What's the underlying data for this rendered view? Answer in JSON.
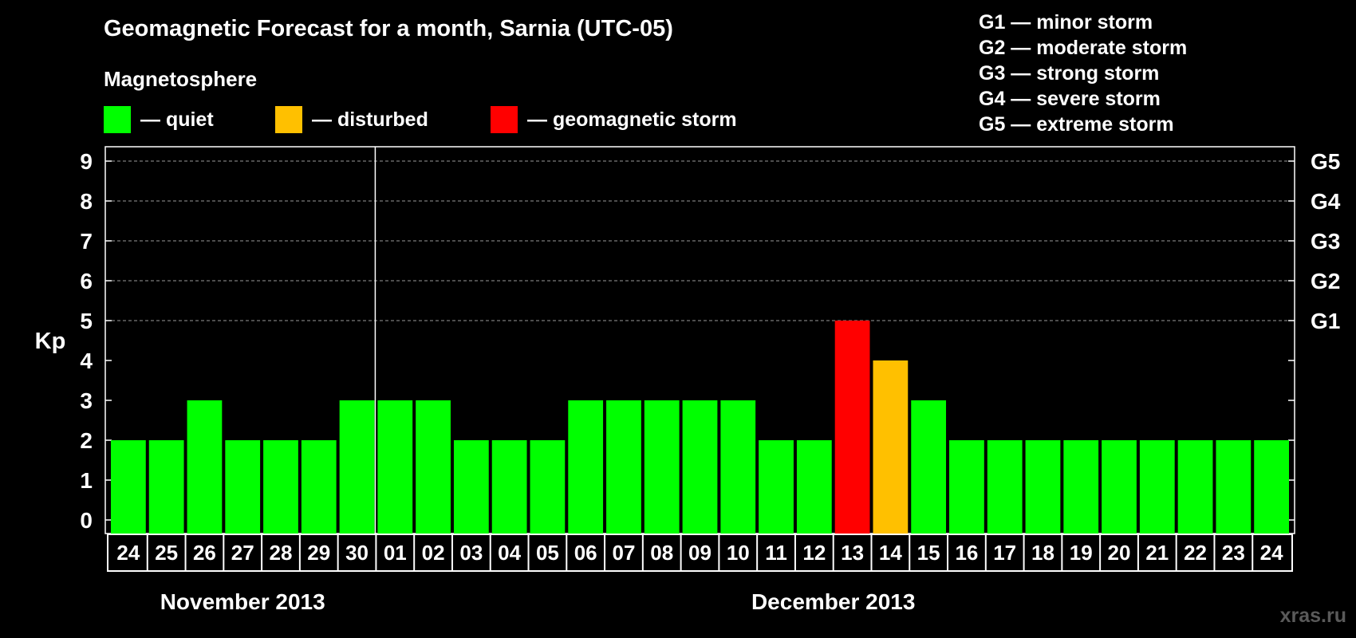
{
  "header": {
    "title": "Geomagnetic Forecast for a month, Sarnia (UTC-05)",
    "subtitle": "Magnetosphere"
  },
  "legend": [
    {
      "label": "— quiet",
      "color": "#00ff00"
    },
    {
      "label": "— disturbed",
      "color": "#ffc000"
    },
    {
      "label": "— geomagnetic storm",
      "color": "#ff0000"
    }
  ],
  "storm_scale": [
    "G1 — minor storm",
    "G2 — moderate storm",
    "G3 — strong storm",
    "G4 — severe storm",
    "G5 — extreme storm"
  ],
  "watermark": "xras.ru",
  "chart_data": {
    "type": "bar",
    "ylabel": "Kp",
    "ylim": [
      0,
      9
    ],
    "yticks": [
      0,
      1,
      2,
      3,
      4,
      5,
      6,
      7,
      8,
      9
    ],
    "right_axis_labels": [
      {
        "kp": 5,
        "label": "G1"
      },
      {
        "kp": 6,
        "label": "G2"
      },
      {
        "kp": 7,
        "label": "G3"
      },
      {
        "kp": 8,
        "label": "G4"
      },
      {
        "kp": 9,
        "label": "G5"
      }
    ],
    "grid": "dashed horizontal lines at Kp 5 to 9",
    "categories": [
      "24",
      "25",
      "26",
      "27",
      "28",
      "29",
      "30",
      "01",
      "02",
      "03",
      "04",
      "05",
      "06",
      "07",
      "08",
      "09",
      "10",
      "11",
      "12",
      "13",
      "14",
      "15",
      "16",
      "17",
      "18",
      "19",
      "20",
      "21",
      "22",
      "23",
      "24"
    ],
    "values": [
      2,
      2,
      3,
      2,
      2,
      2,
      3,
      3,
      3,
      2,
      2,
      2,
      3,
      3,
      3,
      3,
      3,
      2,
      2,
      5,
      4,
      3,
      2,
      2,
      2,
      2,
      2,
      2,
      2,
      2,
      2
    ],
    "colors": {
      "quiet": "#00ff00",
      "disturbed": "#ffc000",
      "storm": "#ff0000"
    },
    "month_labels": [
      {
        "label": "November 2013",
        "start_index": 0,
        "end_index": 6
      },
      {
        "label": "December 2013",
        "start_index": 7,
        "end_index": 30
      }
    ],
    "month_divider_after_index": 6
  }
}
